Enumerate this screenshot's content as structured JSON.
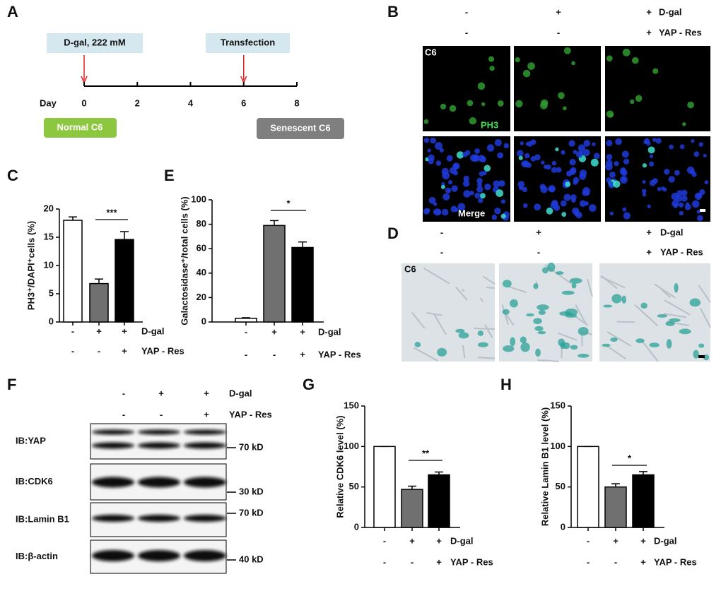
{
  "panel_letters": [
    "A",
    "B",
    "C",
    "D",
    "E",
    "F",
    "G",
    "H"
  ],
  "timeline": {
    "boxes": [
      "D-gal, 222 mM",
      "Transfection"
    ],
    "axis_label": "Day",
    "days": [
      0,
      2,
      4,
      6,
      8
    ],
    "start": "Normal C6",
    "end": "Senescent C6"
  },
  "immunofluorescence": {
    "conditions": [
      {
        "name": "D-gal",
        "values": [
          "-",
          "+",
          "+"
        ]
      },
      {
        "name": "YAP - Res",
        "values": [
          "-",
          "-",
          "+"
        ]
      }
    ],
    "cell_line": "C6",
    "stain": "PH3",
    "merge": "Merge"
  },
  "sa_beta_gal": {
    "conditions": [
      {
        "name": "D-gal",
        "values": [
          "-",
          "+",
          "+"
        ]
      },
      {
        "name": "YAP - Res",
        "values": [
          "-",
          "-",
          "+"
        ]
      }
    ],
    "cell_line": "C6"
  },
  "western_blot": {
    "conditions": [
      {
        "name": "D-gal",
        "values": [
          "-",
          "+",
          "+"
        ]
      },
      {
        "name": "YAP - Res",
        "values": [
          "-",
          "-",
          "+"
        ]
      }
    ],
    "blots": [
      "IB:YAP",
      "IB:CDK6",
      "IB:Lamin B1",
      "IB:β-actin"
    ],
    "markers": [
      "70 kD",
      "30 kD",
      "70 kD",
      "40 kD"
    ]
  },
  "chart_data": [
    {
      "type": "bar",
      "ylabel": "PH3⁺/DAPI⁺cells (%)",
      "values": [
        18,
        6.8,
        14.6
      ],
      "errors": [
        0.6,
        0.8,
        1.4
      ],
      "colors": [
        "#ffffff",
        "#707070",
        "#000000"
      ],
      "ylim": [
        0,
        20
      ],
      "yticks": [
        0,
        5,
        10,
        15,
        20
      ],
      "significance": "***",
      "conditions": [
        {
          "name": "D-gal",
          "values": [
            "-",
            "+",
            "+"
          ]
        },
        {
          "name": "YAP - Res",
          "values": [
            "-",
            "-",
            "+"
          ]
        }
      ]
    },
    {
      "type": "bar",
      "ylabel": "Galactosidase⁺/total cells (%)",
      "values": [
        3,
        79,
        61
      ],
      "errors": [
        0.5,
        4,
        4.5
      ],
      "colors": [
        "#ffffff",
        "#707070",
        "#000000"
      ],
      "ylim": [
        0,
        100
      ],
      "yticks": [
        0,
        20,
        40,
        60,
        80,
        100
      ],
      "significance": "*",
      "conditions": [
        {
          "name": "D-gal",
          "values": [
            "-",
            "+",
            "+"
          ]
        },
        {
          "name": "YAP - Res",
          "values": [
            "-",
            "-",
            "+"
          ]
        }
      ]
    },
    {
      "type": "bar",
      "ylabel": "Relative CDK6 level (%)",
      "values": [
        100,
        47,
        65
      ],
      "errors": [
        0,
        4,
        3.5
      ],
      "colors": [
        "#ffffff",
        "#707070",
        "#000000"
      ],
      "ylim": [
        0,
        150
      ],
      "yticks": [
        0,
        50,
        100,
        150
      ],
      "significance": "**",
      "conditions": [
        {
          "name": "D-gal",
          "values": [
            "-",
            "+",
            "+"
          ]
        },
        {
          "name": "YAP - Res",
          "values": [
            "-",
            "-",
            "+"
          ]
        }
      ]
    },
    {
      "type": "bar",
      "ylabel": "Relative Lamin B1 level (%)",
      "values": [
        100,
        50,
        65
      ],
      "errors": [
        0,
        4,
        4
      ],
      "colors": [
        "#ffffff",
        "#707070",
        "#000000"
      ],
      "ylim": [
        0,
        150
      ],
      "yticks": [
        0,
        50,
        100,
        150
      ],
      "significance": "*",
      "conditions": [
        {
          "name": "D-gal",
          "values": [
            "-",
            "+",
            "+"
          ]
        },
        {
          "name": "YAP - Res",
          "values": [
            "-",
            "-",
            "+"
          ]
        }
      ]
    }
  ]
}
